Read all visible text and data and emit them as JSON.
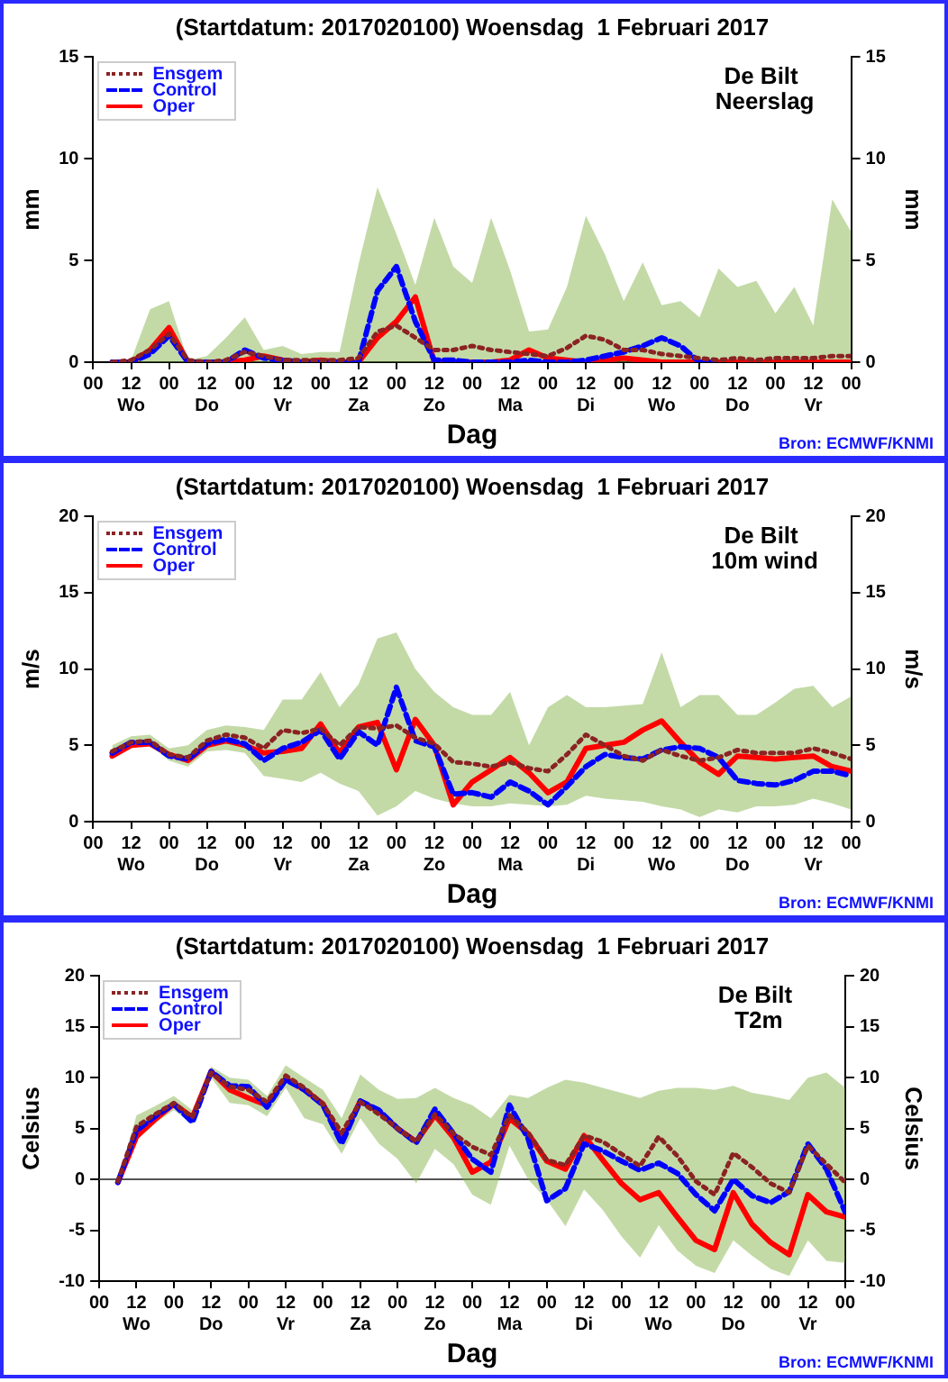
{
  "chart_data": [
    {
      "type": "line",
      "title": "(Startdatum: 2017020100) Woensdag  1 Februari 2017",
      "xlabel": "Dag",
      "ylabel": "mm",
      "y2label": "mm",
      "annotations": [
        "De Bilt",
        "Neerslag",
        "Bron: ECMWF/KNMI"
      ],
      "x": [
        "2017-02-01T06:00",
        "2017-02-01T12:00",
        "2017-02-01T18:00",
        "2017-02-02T00:00",
        "2017-02-02T06:00",
        "2017-02-02T12:00",
        "2017-02-02T18:00",
        "2017-02-03T00:00",
        "2017-02-03T06:00",
        "2017-02-03T12:00",
        "2017-02-03T18:00",
        "2017-02-04T00:00",
        "2017-02-04T06:00",
        "2017-02-04T12:00",
        "2017-02-04T18:00",
        "2017-02-05T00:00",
        "2017-02-05T06:00",
        "2017-02-05T12:00",
        "2017-02-05T18:00",
        "2017-02-06T00:00",
        "2017-02-06T06:00",
        "2017-02-06T12:00",
        "2017-02-06T18:00",
        "2017-02-07T00:00",
        "2017-02-07T06:00",
        "2017-02-07T12:00",
        "2017-02-07T18:00",
        "2017-02-08T00:00",
        "2017-02-08T06:00",
        "2017-02-08T12:00",
        "2017-02-08T18:00",
        "2017-02-09T00:00",
        "2017-02-09T06:00",
        "2017-02-09T12:00",
        "2017-02-09T18:00",
        "2017-02-10T00:00",
        "2017-02-10T06:00",
        "2017-02-10T12:00",
        "2017-02-10T18:00",
        "2017-02-11T00:00"
      ],
      "xlim": [
        "2017-02-01T00:00",
        "2017-02-11T00:00"
      ],
      "xticks": [
        {
          "value": "2017-02-01T00:00",
          "label": "00"
        },
        {
          "value": "2017-02-01T12:00",
          "label": "12\nWo"
        },
        {
          "value": "2017-02-02T00:00",
          "label": "00"
        },
        {
          "value": "2017-02-02T12:00",
          "label": "12\nDo"
        },
        {
          "value": "2017-02-03T00:00",
          "label": "00"
        },
        {
          "value": "2017-02-03T12:00",
          "label": "12\nVr"
        },
        {
          "value": "2017-02-04T00:00",
          "label": "00"
        },
        {
          "value": "2017-02-04T12:00",
          "label": "12\nZa"
        },
        {
          "value": "2017-02-05T00:00",
          "label": "00"
        },
        {
          "value": "2017-02-05T12:00",
          "label": "12\nZo"
        },
        {
          "value": "2017-02-06T00:00",
          "label": "00"
        },
        {
          "value": "2017-02-06T12:00",
          "label": "12\nMa"
        },
        {
          "value": "2017-02-07T00:00",
          "label": "00"
        },
        {
          "value": "2017-02-07T12:00",
          "label": "12\nDi"
        },
        {
          "value": "2017-02-08T00:00",
          "label": "00"
        },
        {
          "value": "2017-02-08T12:00",
          "label": "12\nWo"
        },
        {
          "value": "2017-02-09T00:00",
          "label": "00"
        },
        {
          "value": "2017-02-09T12:00",
          "label": "12\nDo"
        },
        {
          "value": "2017-02-10T00:00",
          "label": "00"
        },
        {
          "value": "2017-02-10T12:00",
          "label": "12\nVr"
        },
        {
          "value": "2017-02-11T00:00",
          "label": "00"
        }
      ],
      "ylim": [
        0,
        15
      ],
      "yticks": [
        0,
        5,
        10,
        15
      ],
      "y2lim": [
        0,
        15
      ],
      "y2ticks": [
        0,
        5,
        10,
        15
      ],
      "grid": false,
      "legend": "top left",
      "marker": "none",
      "series": [
        {
          "name": "Ensgem",
          "color": "#8b2323",
          "line_style": "dotted",
          "values": [
            0,
            0.1,
            0.6,
            1.4,
            0.1,
            0,
            0.1,
            0.5,
            0.3,
            0.1,
            0.1,
            0.1,
            0.1,
            0.2,
            1.5,
            1.8,
            1.2,
            0.6,
            0.6,
            0.8,
            0.6,
            0.5,
            0.4,
            0.3,
            0.7,
            1.3,
            1.1,
            0.6,
            0.6,
            0.4,
            0.3,
            0.2,
            0.1,
            0.2,
            0.1,
            0.2,
            0.2,
            0.2,
            0.3,
            0.3
          ],
          "lower": [
            0,
            0,
            0,
            0,
            0,
            0,
            0,
            0,
            0,
            0,
            0,
            0,
            0,
            0,
            0,
            0,
            0,
            0,
            0,
            0,
            0,
            0,
            0,
            0,
            0,
            0,
            0,
            0,
            0,
            0,
            0,
            0,
            0,
            0,
            0,
            0,
            0,
            0,
            0,
            0
          ],
          "upper": [
            0,
            0.1,
            2.6,
            3.0,
            0.1,
            0.3,
            1.2,
            2.2,
            0.6,
            0.8,
            0.4,
            0.5,
            0.5,
            4.8,
            8.6,
            6.3,
            3.8,
            7.1,
            4.7,
            3.9,
            7.1,
            4.5,
            1.5,
            1.6,
            3.7,
            7.2,
            5.3,
            3.0,
            4.9,
            2.8,
            3.0,
            2.2,
            4.6,
            3.7,
            4.0,
            2.4,
            3.7,
            1.8,
            8.0,
            6.4
          ]
        },
        {
          "name": "Control",
          "color": "#0000ff",
          "line_style": "dashed",
          "values": [
            0,
            0,
            0.4,
            1.3,
            0,
            0,
            0,
            0.6,
            0.2,
            0.1,
            0,
            0,
            0,
            0,
            3.5,
            4.7,
            2.0,
            0.1,
            0.1,
            0,
            0,
            0,
            0.1,
            0,
            0,
            0.1,
            0.3,
            0.5,
            0.8,
            1.2,
            0.8,
            0,
            0,
            null,
            null,
            null,
            null,
            null,
            null,
            null
          ]
        },
        {
          "name": "Oper",
          "color": "#ff0000",
          "line_style": "solid",
          "values": [
            0,
            0,
            0.6,
            1.7,
            0,
            0,
            0,
            0.1,
            0.3,
            0.1,
            0,
            0.1,
            0,
            0,
            1.2,
            2.0,
            3.2,
            0,
            0,
            0,
            0,
            0.1,
            0.6,
            0.2,
            0.1,
            0,
            0.1,
            0.2,
            0.1,
            0,
            0,
            0,
            0,
            0,
            0,
            0,
            0,
            0,
            0,
            0
          ]
        }
      ]
    },
    {
      "type": "line",
      "title": "(Startdatum: 2017020100) Woensdag  1 Februari 2017",
      "xlabel": "Dag",
      "ylabel": "m/s",
      "y2label": "m/s",
      "annotations": [
        "De Bilt",
        "10m wind",
        "Bron: ECMWF/KNMI"
      ],
      "x": [
        "2017-02-01T06:00",
        "2017-02-01T12:00",
        "2017-02-01T18:00",
        "2017-02-02T00:00",
        "2017-02-02T06:00",
        "2017-02-02T12:00",
        "2017-02-02T18:00",
        "2017-02-03T00:00",
        "2017-02-03T06:00",
        "2017-02-03T12:00",
        "2017-02-03T18:00",
        "2017-02-04T00:00",
        "2017-02-04T06:00",
        "2017-02-04T12:00",
        "2017-02-04T18:00",
        "2017-02-05T00:00",
        "2017-02-05T06:00",
        "2017-02-05T12:00",
        "2017-02-05T18:00",
        "2017-02-06T00:00",
        "2017-02-06T06:00",
        "2017-02-06T12:00",
        "2017-02-06T18:00",
        "2017-02-07T00:00",
        "2017-02-07T06:00",
        "2017-02-07T12:00",
        "2017-02-07T18:00",
        "2017-02-08T00:00",
        "2017-02-08T06:00",
        "2017-02-08T12:00",
        "2017-02-08T18:00",
        "2017-02-09T00:00",
        "2017-02-09T06:00",
        "2017-02-09T12:00",
        "2017-02-09T18:00",
        "2017-02-10T00:00",
        "2017-02-10T06:00",
        "2017-02-10T12:00",
        "2017-02-10T18:00",
        "2017-02-11T00:00"
      ],
      "xlim": [
        "2017-02-01T00:00",
        "2017-02-11T00:00"
      ],
      "xticks": [
        {
          "value": "2017-02-01T00:00",
          "label": "00"
        },
        {
          "value": "2017-02-01T12:00",
          "label": "12\nWo"
        },
        {
          "value": "2017-02-02T00:00",
          "label": "00"
        },
        {
          "value": "2017-02-02T12:00",
          "label": "12\nDo"
        },
        {
          "value": "2017-02-03T00:00",
          "label": "00"
        },
        {
          "value": "2017-02-03T12:00",
          "label": "12\nVr"
        },
        {
          "value": "2017-02-04T00:00",
          "label": "00"
        },
        {
          "value": "2017-02-04T12:00",
          "label": "12\nZa"
        },
        {
          "value": "2017-02-05T00:00",
          "label": "00"
        },
        {
          "value": "2017-02-05T12:00",
          "label": "12\nZo"
        },
        {
          "value": "2017-02-06T00:00",
          "label": "00"
        },
        {
          "value": "2017-02-06T12:00",
          "label": "12\nMa"
        },
        {
          "value": "2017-02-07T00:00",
          "label": "00"
        },
        {
          "value": "2017-02-07T12:00",
          "label": "12\nDi"
        },
        {
          "value": "2017-02-08T00:00",
          "label": "00"
        },
        {
          "value": "2017-02-08T12:00",
          "label": "12\nWo"
        },
        {
          "value": "2017-02-09T00:00",
          "label": "00"
        },
        {
          "value": "2017-02-09T12:00",
          "label": "12\nDo"
        },
        {
          "value": "2017-02-10T00:00",
          "label": "00"
        },
        {
          "value": "2017-02-10T12:00",
          "label": "12\nVr"
        },
        {
          "value": "2017-02-11T00:00",
          "label": "00"
        }
      ],
      "ylim": [
        0,
        20
      ],
      "yticks": [
        0,
        5,
        10,
        15,
        20
      ],
      "y2lim": [
        0,
        20
      ],
      "y2ticks": [
        0,
        5,
        10,
        15,
        20
      ],
      "grid": false,
      "legend": "top left",
      "marker": "none",
      "series": [
        {
          "name": "Ensgem",
          "color": "#8b2323",
          "line_style": "dotted",
          "values": [
            4.6,
            5.2,
            5.3,
            4.4,
            4.2,
            5.3,
            5.7,
            5.5,
            4.8,
            6.0,
            5.8,
            6.1,
            5.0,
            6.2,
            6.1,
            6.3,
            5.5,
            5.1,
            3.9,
            3.8,
            3.6,
            3.9,
            3.5,
            3.3,
            4.4,
            5.7,
            5.0,
            4.3,
            4.0,
            4.7,
            4.3,
            4.0,
            4.2,
            4.7,
            4.5,
            4.5,
            4.5,
            4.8,
            4.5,
            4.1
          ],
          "lower": [
            4.2,
            4.9,
            5.0,
            4.0,
            3.6,
            4.6,
            4.7,
            4.5,
            3.0,
            2.8,
            2.6,
            3.2,
            2.5,
            2.0,
            0.4,
            1.0,
            2.0,
            1.5,
            1.2,
            1.0,
            1.0,
            1.2,
            1.1,
            1.0,
            1.1,
            1.7,
            1.5,
            1.4,
            1.3,
            1.0,
            0.8,
            0.3,
            0.8,
            0.6,
            1.0,
            1.0,
            1.1,
            1.5,
            1.2,
            0.8
          ],
          "upper": [
            5.0,
            5.6,
            5.7,
            4.8,
            5.0,
            6.0,
            6.3,
            6.2,
            6.0,
            8.0,
            8.0,
            9.8,
            7.5,
            9.0,
            12.0,
            12.4,
            10.0,
            8.5,
            7.5,
            7.0,
            7.0,
            8.5,
            5.0,
            7.5,
            8.3,
            7.5,
            7.5,
            7.6,
            7.7,
            11.1,
            7.5,
            8.3,
            8.3,
            7.0,
            7.0,
            7.8,
            8.7,
            8.9,
            7.5,
            8.2
          ]
        },
        {
          "name": "Control",
          "color": "#0000ff",
          "line_style": "dashed",
          "values": [
            4.5,
            5.2,
            5.2,
            4.3,
            4.1,
            5.1,
            5.4,
            5.1,
            4.0,
            4.8,
            5.2,
            6.0,
            4.1,
            5.9,
            5.0,
            8.8,
            5.3,
            4.9,
            1.8,
            1.9,
            1.6,
            2.6,
            2.0,
            1.1,
            2.3,
            3.6,
            4.4,
            4.2,
            4.1,
            4.7,
            4.9,
            4.8,
            4.2,
            2.7,
            2.5,
            2.4,
            2.7,
            3.3,
            3.3,
            3.0
          ]
        },
        {
          "name": "Oper",
          "color": "#ff0000",
          "line_style": "solid",
          "values": [
            4.3,
            5.0,
            5.1,
            4.4,
            4.0,
            5.0,
            5.3,
            5.0,
            4.5,
            4.6,
            4.8,
            6.4,
            4.5,
            6.2,
            6.5,
            3.4,
            6.7,
            5.0,
            1.1,
            2.6,
            3.4,
            4.2,
            3.2,
            1.9,
            2.6,
            4.8,
            5.0,
            5.2,
            6.0,
            6.6,
            5.2,
            3.9,
            3.1,
            4.3,
            4.2,
            4.1,
            4.2,
            4.3,
            3.6,
            3.3
          ]
        }
      ]
    },
    {
      "type": "line",
      "title": "(Startdatum: 2017020100) Woensdag  1 Februari 2017",
      "xlabel": "Dag",
      "ylabel": "Celsius",
      "y2label": "Celsius",
      "annotations": [
        "De Bilt",
        "T2m",
        "Bron: ECMWF/KNMI"
      ],
      "x": [
        "2017-02-01T06:00",
        "2017-02-01T12:00",
        "2017-02-01T18:00",
        "2017-02-02T00:00",
        "2017-02-02T06:00",
        "2017-02-02T12:00",
        "2017-02-02T18:00",
        "2017-02-03T00:00",
        "2017-02-03T06:00",
        "2017-02-03T12:00",
        "2017-02-03T18:00",
        "2017-02-04T00:00",
        "2017-02-04T06:00",
        "2017-02-04T12:00",
        "2017-02-04T18:00",
        "2017-02-05T00:00",
        "2017-02-05T06:00",
        "2017-02-05T12:00",
        "2017-02-05T18:00",
        "2017-02-06T00:00",
        "2017-02-06T06:00",
        "2017-02-06T12:00",
        "2017-02-06T18:00",
        "2017-02-07T00:00",
        "2017-02-07T06:00",
        "2017-02-07T12:00",
        "2017-02-07T18:00",
        "2017-02-08T00:00",
        "2017-02-08T06:00",
        "2017-02-08T12:00",
        "2017-02-08T18:00",
        "2017-02-09T00:00",
        "2017-02-09T06:00",
        "2017-02-09T12:00",
        "2017-02-09T18:00",
        "2017-02-10T00:00",
        "2017-02-10T06:00",
        "2017-02-10T12:00",
        "2017-02-10T18:00",
        "2017-02-11T00:00"
      ],
      "xlim": [
        "2017-02-01T00:00",
        "2017-02-11T00:00"
      ],
      "xticks": [
        {
          "value": "2017-02-01T00:00",
          "label": "00"
        },
        {
          "value": "2017-02-01T12:00",
          "label": "12\nWo"
        },
        {
          "value": "2017-02-02T00:00",
          "label": "00"
        },
        {
          "value": "2017-02-02T12:00",
          "label": "12\nDo"
        },
        {
          "value": "2017-02-03T00:00",
          "label": "00"
        },
        {
          "value": "2017-02-03T12:00",
          "label": "12\nVr"
        },
        {
          "value": "2017-02-04T00:00",
          "label": "00"
        },
        {
          "value": "2017-02-04T12:00",
          "label": "12\nZa"
        },
        {
          "value": "2017-02-05T00:00",
          "label": "00"
        },
        {
          "value": "2017-02-05T12:00",
          "label": "12\nZo"
        },
        {
          "value": "2017-02-06T00:00",
          "label": "00"
        },
        {
          "value": "2017-02-06T12:00",
          "label": "12\nMa"
        },
        {
          "value": "2017-02-07T00:00",
          "label": "00"
        },
        {
          "value": "2017-02-07T12:00",
          "label": "12\nDi"
        },
        {
          "value": "2017-02-08T00:00",
          "label": "00"
        },
        {
          "value": "2017-02-08T12:00",
          "label": "12\nWo"
        },
        {
          "value": "2017-02-09T00:00",
          "label": "00"
        },
        {
          "value": "2017-02-09T12:00",
          "label": "12\nDo"
        },
        {
          "value": "2017-02-10T00:00",
          "label": "00"
        },
        {
          "value": "2017-02-10T12:00",
          "label": "12\nVr"
        },
        {
          "value": "2017-02-11T00:00",
          "label": "00"
        }
      ],
      "ylim": [
        -10,
        20
      ],
      "yticks": [
        -10,
        -5,
        0,
        5,
        10,
        15,
        20
      ],
      "y2lim": [
        -10,
        20
      ],
      "y2ticks": [
        -10,
        -5,
        0,
        5,
        10,
        15,
        20
      ],
      "grid": false,
      "legend": "top left",
      "marker": "none",
      "ref_lines": [
        {
          "axis": "y",
          "value": 0,
          "color": "#555555"
        }
      ],
      "series": [
        {
          "name": "Ensgem",
          "color": "#8b2323",
          "line_style": "dotted",
          "values": [
            -0.2,
            5.2,
            6.4,
            7.5,
            6.1,
            10.5,
            9.1,
            8.8,
            7.6,
            10.2,
            9.0,
            7.4,
            4.6,
            7.6,
            6.4,
            5.0,
            3.7,
            6.4,
            4.5,
            3.2,
            2.4,
            6.3,
            4.6,
            1.9,
            1.4,
            4.3,
            3.7,
            2.5,
            1.3,
            4.2,
            2.3,
            -0.2,
            -1.5,
            2.6,
            1.2,
            -0.4,
            -1.3,
            3.3,
            1.5,
            -0.3
          ],
          "lower": [
            -0.5,
            4.0,
            5.5,
            6.8,
            5.4,
            10.0,
            7.5,
            7.3,
            6.2,
            9.0,
            6.0,
            5.4,
            2.5,
            6.0,
            3.5,
            2.0,
            -0.4,
            3.0,
            1.5,
            -1.5,
            -2.5,
            3.3,
            0,
            -2.0,
            -4.6,
            -1.0,
            -3.0,
            -5.6,
            -7.7,
            -4.5,
            -7.0,
            -8.5,
            -9.2,
            -6.0,
            -7.5,
            -8.8,
            -9.5,
            -6.0,
            -8.0,
            -8.2
          ],
          "upper": [
            -0.1,
            6.3,
            7.2,
            8.2,
            6.8,
            11.1,
            10.0,
            9.8,
            8.2,
            11.2,
            10.0,
            8.8,
            6.0,
            10.3,
            8.8,
            7.9,
            8.0,
            9.0,
            8.0,
            7.3,
            6.0,
            8.3,
            8.0,
            9.0,
            9.8,
            9.5,
            9.0,
            8.5,
            8.0,
            8.7,
            9.0,
            9.0,
            8.8,
            9.2,
            8.5,
            8.2,
            7.8,
            10.0,
            10.5,
            9.0
          ]
        },
        {
          "name": "Control",
          "color": "#0000ff",
          "line_style": "dashed",
          "values": [
            -0.3,
            4.8,
            6.2,
            7.4,
            5.6,
            10.6,
            9.2,
            9.1,
            7.1,
            9.8,
            8.8,
            7.3,
            3.5,
            7.7,
            6.8,
            5.0,
            3.6,
            6.9,
            4.5,
            2.0,
            0.7,
            7.3,
            4.0,
            -2.1,
            -0.9,
            3.5,
            2.8,
            1.8,
            0.9,
            1.6,
            0.6,
            -1.5,
            -3.1,
            0,
            -1.6,
            -2.3,
            -1.2,
            3.5,
            1.0,
            -3.2
          ]
        },
        {
          "name": "Oper",
          "color": "#ff0000",
          "line_style": "solid",
          "values": [
            -0.3,
            4.2,
            5.9,
            7.4,
            6.1,
            10.6,
            8.8,
            8.0,
            7.3,
            9.9,
            8.8,
            7.4,
            3.9,
            7.7,
            6.7,
            5.0,
            3.7,
            6.3,
            4.1,
            0.7,
            1.7,
            6.0,
            4.5,
            1.8,
            1.0,
            4.3,
            1.9,
            -0.4,
            -2.0,
            -1.3,
            -3.7,
            -6.0,
            -6.9,
            -1.3,
            -4.4,
            -6.2,
            -7.4,
            -1.5,
            -3.2,
            -3.7
          ]
        }
      ]
    }
  ]
}
